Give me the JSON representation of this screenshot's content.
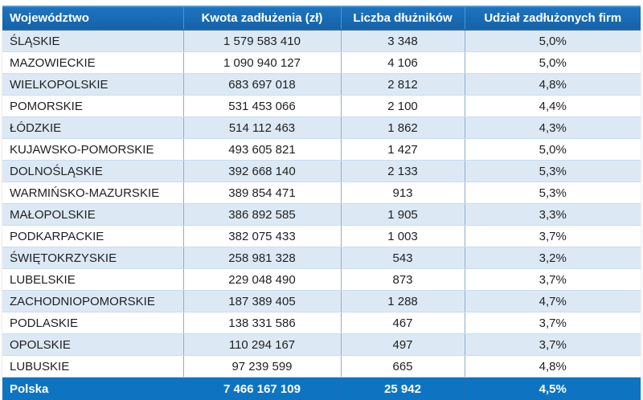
{
  "table": {
    "columns": {
      "region": "Województwo",
      "amount": "Kwota zadłużenia (zł)",
      "debtors": "Liczba dłużników",
      "share": "Udział zadłużonych firm"
    },
    "rows": [
      {
        "region": "ŚLĄSKIE",
        "amount": "1 579 583 410",
        "debtors": "3 348",
        "share": "5,0%"
      },
      {
        "region": "MAZOWIECKIE",
        "amount": "1 090 940 127",
        "debtors": "4 106",
        "share": "5,0%"
      },
      {
        "region": "WIELKOPOLSKIE",
        "amount": "683 697 018",
        "debtors": "2 812",
        "share": "4,8%"
      },
      {
        "region": "POMORSKIE",
        "amount": "531 453 066",
        "debtors": "2 100",
        "share": "4,4%"
      },
      {
        "region": "ŁÓDZKIE",
        "amount": "514 112 463",
        "debtors": "1 862",
        "share": "4,3%"
      },
      {
        "region": "KUJAWSKO-POMORSKIE",
        "amount": "493 605 821",
        "debtors": "1 427",
        "share": "5,0%"
      },
      {
        "region": "DOLNOŚLĄSKIE",
        "amount": "392 668 140",
        "debtors": "2 133",
        "share": "5,3%"
      },
      {
        "region": "WARMIŃSKO-MAZURSKIE",
        "amount": "389 854 471",
        "debtors": "913",
        "share": "5,3%"
      },
      {
        "region": "MAŁOPOLSKIE",
        "amount": "386 892 585",
        "debtors": "1 905",
        "share": "3,3%"
      },
      {
        "region": "PODKARPACKIE",
        "amount": "382 075 433",
        "debtors": "1 003",
        "share": "3,7%"
      },
      {
        "region": "ŚWIĘTOKRZYSKIE",
        "amount": "258 981 328",
        "debtors": "543",
        "share": "3,2%"
      },
      {
        "region": "LUBELSKIE",
        "amount": "229 048 490",
        "debtors": "873",
        "share": "3,7%"
      },
      {
        "region": "ZACHODNIOPOMORSKIE",
        "amount": "187 389 405",
        "debtors": "1 288",
        "share": "4,7%"
      },
      {
        "region": "PODLASKIE",
        "amount": "138 331 586",
        "debtors": "467",
        "share": "3,7%"
      },
      {
        "region": "OPOLSKIE",
        "amount": "110 294 167",
        "debtors": "497",
        "share": "3,7%"
      },
      {
        "region": "LUBUSKIE",
        "amount": "97 239 599",
        "debtors": "665",
        "share": "4,8%"
      }
    ],
    "footer": {
      "region": "Polska",
      "amount": "7 466 167 109",
      "debtors": "25 942",
      "share": "4,5%"
    }
  },
  "colors": {
    "header_bg": "#1566AE",
    "header_top_highlight": "#4C96D6",
    "footer_bg": "#0E74C2",
    "alt_row_bg": "#DCE9F5",
    "row_bg": "#FFFFFF",
    "vertical_border": "#8FAECB",
    "row_border": "#C9DCEF",
    "text": "#1F1F1F",
    "header_text": "#FFFFFF"
  },
  "chart_data": {
    "type": "table",
    "title": "",
    "columns": [
      "Województwo",
      "Kwota zadłużenia (zł)",
      "Liczba dłużników",
      "Udział zadłużonych firm"
    ],
    "rows": [
      [
        "ŚLĄSKIE",
        1579583410,
        3348,
        "5,0%"
      ],
      [
        "MAZOWIECKIE",
        1090940127,
        4106,
        "5,0%"
      ],
      [
        "WIELKOPOLSKIE",
        683697018,
        2812,
        "4,8%"
      ],
      [
        "POMORSKIE",
        531453066,
        2100,
        "4,4%"
      ],
      [
        "ŁÓDZKIE",
        514112463,
        1862,
        "4,3%"
      ],
      [
        "KUJAWSKO-POMORSKIE",
        493605821,
        1427,
        "5,0%"
      ],
      [
        "DOLNOŚLĄSKIE",
        392668140,
        2133,
        "5,3%"
      ],
      [
        "WARMIŃSKO-MAZURSKIE",
        389854471,
        913,
        "5,3%"
      ],
      [
        "MAŁOPOLSKIE",
        386892585,
        1905,
        "3,3%"
      ],
      [
        "PODKARPACKIE",
        382075433,
        1003,
        "3,7%"
      ],
      [
        "ŚWIĘTOKRZYSKIE",
        258981328,
        543,
        "3,2%"
      ],
      [
        "LUBELSKIE",
        229048490,
        873,
        "3,7%"
      ],
      [
        "ZACHODNIOPOMORSKIE",
        187389405,
        1288,
        "4,7%"
      ],
      [
        "PODLASKIE",
        138331586,
        467,
        "3,7%"
      ],
      [
        "OPOLSKIE",
        110294167,
        497,
        "3,7%"
      ],
      [
        "LUBUSKIE",
        97239599,
        665,
        "4,8%"
      ]
    ],
    "total_row": [
      "Polska",
      7466167109,
      25942,
      "4,5%"
    ]
  }
}
